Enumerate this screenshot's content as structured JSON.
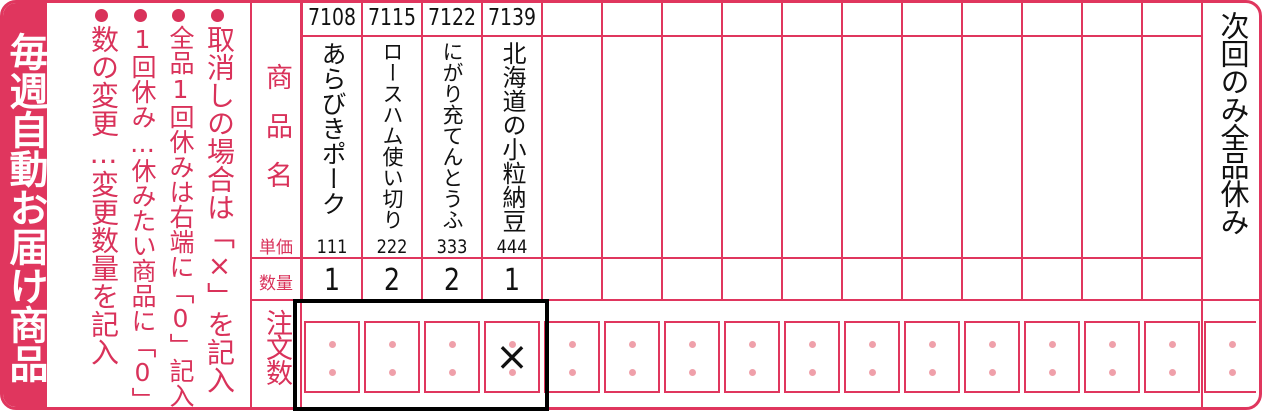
{
  "colors": {
    "accent": "#e0365e",
    "dot": "#efa0aa"
  },
  "banner": "毎週自動お届け商品",
  "instructions": [
    "取消しの場合は「×」を記入",
    "全品1回休みは右端に「0」記入",
    "1回休み…休みたい商品に「0」",
    "数の変更…変更数量を記入"
  ],
  "labels": {
    "product_name": "商品名",
    "unit_price": "単価",
    "quantity": "数量",
    "order_count": "注文数"
  },
  "products": [
    {
      "code": "7108",
      "name": "あらびきポーク",
      "price": "111",
      "qty": "1",
      "order": ""
    },
    {
      "code": "7115",
      "name": "ロースハム使い切り",
      "price": "222",
      "qty": "2",
      "order": ""
    },
    {
      "code": "7122",
      "name": "にがり充てんとうふ",
      "price": "333",
      "qty": "2",
      "order": ""
    },
    {
      "code": "7139",
      "name": "北海道の小粒納豆",
      "price": "444",
      "qty": "1",
      "order": "×"
    }
  ],
  "empty_columns": 11,
  "skip_all_label": "次回のみ全品休み"
}
